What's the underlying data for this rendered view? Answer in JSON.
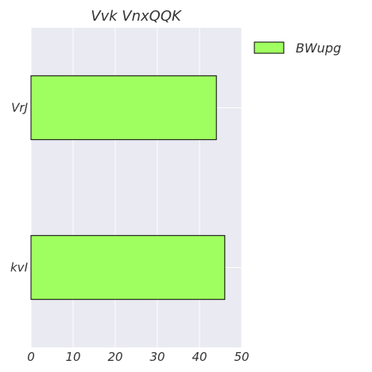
{
  "chart_data": {
    "type": "bar",
    "orientation": "horizontal",
    "title": "Vvk VnxQQK",
    "categories": [
      "VrJ",
      "kvI"
    ],
    "series": [
      {
        "name": "BWupg",
        "values": [
          44,
          46
        ],
        "color": "#a0ff60"
      }
    ],
    "xlim": [
      0,
      50
    ],
    "xticks": [
      0,
      10,
      20,
      30,
      40,
      50
    ],
    "grid": true,
    "legend": "top-right",
    "plot_background": "#eaeaf2",
    "bar_edge_color": "#000000"
  }
}
